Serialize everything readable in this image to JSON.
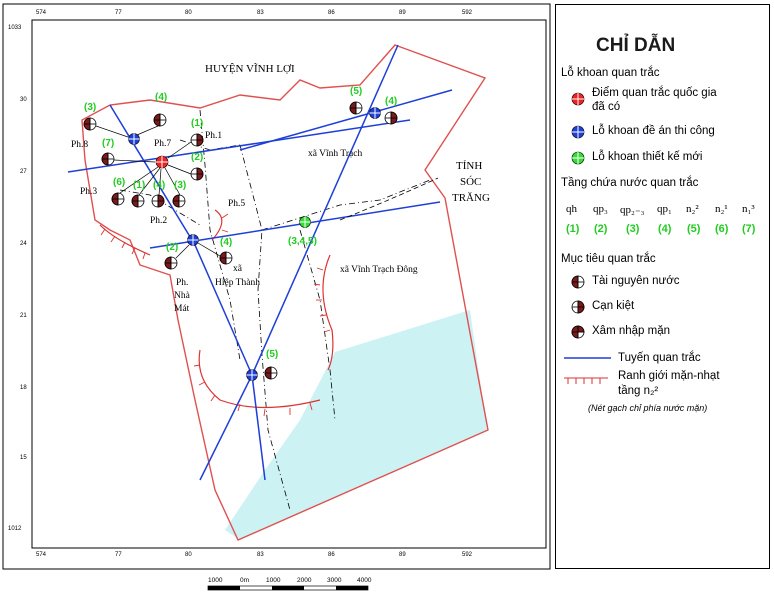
{
  "map": {
    "title_region_north": "HUYỆN VĨNH LỢI",
    "province_label": [
      "TỈNH",
      "SÓC",
      "TRĂNG"
    ],
    "communes": [
      "xã Vĩnh Trạch",
      "xã Vĩnh Trạch Đông",
      "xã",
      "Hiệp Thành"
    ],
    "wards": [
      "Ph.1",
      "Ph.2",
      "Ph.3",
      "Ph.5",
      "Ph.7",
      "Ph.8"
    ],
    "ward_nha_mat": [
      "Ph.",
      "Nhà",
      "Mát"
    ],
    "axis_top": [
      "574",
      "77",
      "80",
      "83",
      "86",
      "89",
      "592"
    ],
    "axis_bottom": [
      "574",
      "77",
      "80",
      "83",
      "86",
      "89",
      "592"
    ],
    "axis_left": [
      "1033",
      "30",
      "27",
      "24",
      "21",
      "18",
      "15",
      "1012"
    ],
    "well_labels": [
      "(3)",
      "(4)",
      "(1)",
      "(2)",
      "(7)",
      "(6)",
      "(1)",
      "(4)",
      "(3)",
      "(2)",
      "(4)",
      "(3,4,5)",
      "(5)",
      "(5)",
      "(4)"
    ],
    "scale_bar": {
      "labels": [
        "1000",
        "0m",
        "1000",
        "2000",
        "3000",
        "4000"
      ]
    }
  },
  "legend": {
    "title": "CHỈ DẪN",
    "section_wells": "Lỗ khoan quan trắc",
    "well_types": [
      {
        "label": "Điểm quan trắc quốc gia",
        "label2": "đã có",
        "color": "#ee2222"
      },
      {
        "label": "Lỗ khoan đề án thi công",
        "label2": "",
        "color": "#1e3fd8"
      },
      {
        "label": "Lỗ khoan thiết kế mới",
        "label2": "",
        "color": "#33dd33"
      }
    ],
    "section_aquifers": "Tầng chứa nước quan trắc",
    "aquifers": [
      {
        "symbol": "qh",
        "num": "(1)"
      },
      {
        "symbol": "qp₃",
        "num": "(2)"
      },
      {
        "symbol": "qp₂₋₃",
        "num": "(3)"
      },
      {
        "symbol": "qp₁",
        "num": "(4)"
      },
      {
        "symbol": "n₂²",
        "num": "(5)"
      },
      {
        "symbol": "n₂¹",
        "num": "(6)"
      },
      {
        "symbol": "n₁³",
        "num": "(7)"
      }
    ],
    "section_targets": "Mục tiêu quan trắc",
    "targets": [
      "Tài nguyên nước",
      "Cạn kiệt",
      "Xâm nhập mặn"
    ],
    "line_items": [
      {
        "label": "Tuyến quan trắc",
        "color": "#1e3fd8"
      },
      {
        "label": "Ranh giới mặn-nhạt",
        "label2": "tầng n₂²",
        "color": "#dd3333"
      }
    ],
    "note": "(Nét gạch chỉ phía nước mặn)"
  },
  "colors": {
    "boundary": "#e05050",
    "line": "#1e3fd8",
    "water": "#ccf2f4",
    "green_label": "#22cc22"
  }
}
